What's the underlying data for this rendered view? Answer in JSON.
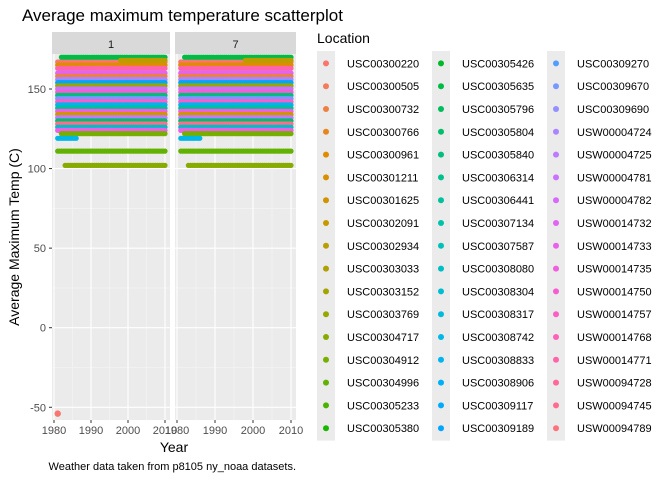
{
  "chart_data": {
    "type": "scatter",
    "title": "Average maximum temperature scatterplot",
    "caption": "Weather data taken from p8105 ny_noaa datasets.",
    "xlabel": "Year",
    "ylabel": "Average Maximum Temp (C)",
    "xlim": [
      1980,
      2010
    ],
    "ylim": [
      -58,
      172
    ],
    "x_ticks": [
      "1980",
      "1990",
      "2000",
      "2010"
    ],
    "y_ticks": [
      "-50",
      "0",
      "50",
      "100",
      "150"
    ],
    "x_tick_values": [
      1980,
      1990,
      2000,
      2010
    ],
    "y_tick_values": [
      -50,
      0,
      50,
      100,
      150
    ],
    "facets": [
      "1",
      "7"
    ],
    "legend_title": "Location",
    "legend_position": "right",
    "grid": true,
    "series": [
      {
        "name": "USC00300220",
        "color": "#F8766D",
        "facet_values": [
          [
            {
              "x": 1981,
              "y": -54
            }
          ],
          []
        ]
      },
      {
        "name": "USC00300505",
        "color": "#F37B59",
        "facet_values": [
          [],
          []
        ]
      },
      {
        "name": "USC00300732",
        "color": "#ED8141",
        "facet_values": [
          [],
          []
        ]
      },
      {
        "name": "USC00300766",
        "color": "#E7861B",
        "facet_values": [
          [],
          []
        ]
      },
      {
        "name": "USC00300961",
        "color": "#DF8C00",
        "facet_values": [
          [],
          []
        ]
      },
      {
        "name": "USC00301211",
        "color": "#D89000",
        "facet_values": [
          [],
          []
        ]
      },
      {
        "name": "USC00301625",
        "color": "#CF9400",
        "facet_values": [
          [],
          []
        ]
      },
      {
        "name": "USC00302091",
        "color": "#C59900",
        "facet_values": [
          [],
          []
        ]
      },
      {
        "name": "USC00302934",
        "color": "#BB9D00",
        "facet_values": [
          [],
          []
        ]
      },
      {
        "name": "USC00303033",
        "color": "#B0A100",
        "facet_values": [
          [],
          []
        ]
      },
      {
        "name": "USC00303152",
        "color": "#A4A400",
        "facet_values": [
          [],
          []
        ]
      },
      {
        "name": "USC00303769",
        "color": "#96A800",
        "facet_values": [
          [],
          []
        ]
      },
      {
        "name": "USC00304717",
        "color": "#88AB00",
        "facet_values": [
          [],
          []
        ]
      },
      {
        "name": "USC00304912",
        "color": "#77AE00",
        "facet_values": [
          [],
          []
        ]
      },
      {
        "name": "USC00304996",
        "color": "#62B200",
        "facet_values": [
          [],
          []
        ]
      },
      {
        "name": "USC00305233",
        "color": "#48B400",
        "facet_values": [
          [],
          []
        ]
      },
      {
        "name": "USC00305380",
        "color": "#1AB700",
        "facet_values": [
          [],
          []
        ]
      },
      {
        "name": "USC00305426",
        "color": "#00B92A",
        "facet_values": [
          [],
          []
        ]
      },
      {
        "name": "USC00305635",
        "color": "#00BB45",
        "facet_values": [
          [],
          []
        ]
      },
      {
        "name": "USC00305796",
        "color": "#00BC5A",
        "facet_values": [
          [],
          []
        ]
      },
      {
        "name": "USC00305804",
        "color": "#00BE6C",
        "facet_values": [
          [],
          []
        ]
      },
      {
        "name": "USC00305840",
        "color": "#00BF7D",
        "facet_values": [
          [],
          []
        ]
      },
      {
        "name": "USC00306314",
        "color": "#00C08D",
        "facet_values": [
          [],
          []
        ]
      },
      {
        "name": "USC00306441",
        "color": "#00C19C",
        "facet_values": [
          [],
          []
        ]
      },
      {
        "name": "USC00307134",
        "color": "#00C1AA",
        "facet_values": [
          [],
          []
        ]
      },
      {
        "name": "USC00307587",
        "color": "#00C0B8",
        "facet_values": [
          [],
          []
        ]
      },
      {
        "name": "USC00308080",
        "color": "#00BFC4",
        "facet_values": [
          [],
          []
        ]
      },
      {
        "name": "USC00308304",
        "color": "#00BDD0",
        "facet_values": [
          [],
          []
        ]
      },
      {
        "name": "USC00308317",
        "color": "#00BBDB",
        "facet_values": [
          [],
          []
        ]
      },
      {
        "name": "USC00308742",
        "color": "#00B8E5",
        "facet_values": [
          [],
          []
        ]
      },
      {
        "name": "USC00308833",
        "color": "#00B4EF",
        "facet_values": [
          [],
          []
        ]
      },
      {
        "name": "USC00308906",
        "color": "#00B0F6",
        "facet_values": [
          [],
          []
        ]
      },
      {
        "name": "USC00309117",
        "color": "#00ABFD",
        "facet_values": [
          [],
          []
        ]
      },
      {
        "name": "USC00309189",
        "color": "#00A5FF",
        "facet_values": [
          [],
          []
        ]
      },
      {
        "name": "USC00309270",
        "color": "#529EFF",
        "facet_values": [
          [],
          []
        ]
      },
      {
        "name": "USC00309670",
        "color": "#7997FF",
        "facet_values": [
          [],
          []
        ]
      },
      {
        "name": "USC00309690",
        "color": "#948FFF",
        "facet_values": [
          [],
          []
        ]
      },
      {
        "name": "USW00004724",
        "color": "#A985FF",
        "facet_values": [
          [],
          []
        ]
      },
      {
        "name": "USW00004725",
        "color": "#BB7CFF",
        "facet_values": [
          [],
          []
        ]
      },
      {
        "name": "USW00004781",
        "color": "#CA72FF",
        "facet_values": [
          [],
          []
        ]
      },
      {
        "name": "USW00004782",
        "color": "#D76AFA",
        "facet_values": [
          [],
          []
        ]
      },
      {
        "name": "USW00014732",
        "color": "#E164F2",
        "facet_values": [
          [],
          []
        ]
      },
      {
        "name": "USW00014733",
        "color": "#EA60E9",
        "facet_values": [
          [],
          []
        ]
      },
      {
        "name": "USW00014735",
        "color": "#F15EDF",
        "facet_values": [
          [],
          []
        ]
      },
      {
        "name": "USW00014750",
        "color": "#F75DD3",
        "facet_values": [
          [],
          []
        ]
      },
      {
        "name": "USW00014757",
        "color": "#FB5EC7",
        "facet_values": [
          [],
          []
        ]
      },
      {
        "name": "USW00014768",
        "color": "#FE61B9",
        "facet_values": [
          [],
          []
        ]
      },
      {
        "name": "USW00014771",
        "color": "#FF64AB",
        "facet_values": [
          [],
          []
        ]
      },
      {
        "name": "USW00094728",
        "color": "#FF689C",
        "facet_values": [
          [],
          []
        ]
      },
      {
        "name": "USW00094745",
        "color": "#FE6D8D",
        "facet_values": [
          [],
          []
        ]
      },
      {
        "name": "USW00094789",
        "color": "#FB727C",
        "facet_values": [
          [],
          []
        ]
      }
    ],
    "bands": [
      {
        "series": 0,
        "y": 167,
        "x0": 1981,
        "x1": 2010
      },
      {
        "series": 4,
        "y": 165,
        "x0": 1981,
        "x1": 2010
      },
      {
        "series": 18,
        "y": 170,
        "x0": 1982,
        "x1": 2010
      },
      {
        "series": 8,
        "y": 168,
        "x0": 1998,
        "x1": 2010
      },
      {
        "series": 47,
        "y": 163,
        "x0": 1981,
        "x1": 2010
      },
      {
        "series": 41,
        "y": 160,
        "x0": 1981,
        "x1": 2010
      },
      {
        "series": 2,
        "y": 158,
        "x0": 1981,
        "x1": 2010
      },
      {
        "series": 37,
        "y": 156,
        "x0": 1981,
        "x1": 2010
      },
      {
        "series": 33,
        "y": 154,
        "x0": 1981,
        "x1": 2010
      },
      {
        "series": 11,
        "y": 152,
        "x0": 1981,
        "x1": 2010
      },
      {
        "series": 39,
        "y": 150,
        "x0": 1981,
        "x1": 2010
      },
      {
        "series": 44,
        "y": 148,
        "x0": 1981,
        "x1": 2010
      },
      {
        "series": 21,
        "y": 146,
        "x0": 1981,
        "x1": 2010
      },
      {
        "series": 35,
        "y": 144,
        "x0": 1981,
        "x1": 2010
      },
      {
        "series": 45,
        "y": 142,
        "x0": 1981,
        "x1": 2010
      },
      {
        "series": 30,
        "y": 140,
        "x0": 1981,
        "x1": 2010
      },
      {
        "series": 23,
        "y": 138,
        "x0": 1981,
        "x1": 2010
      },
      {
        "series": 43,
        "y": 136,
        "x0": 1981,
        "x1": 2010
      },
      {
        "series": 6,
        "y": 134,
        "x0": 1981,
        "x1": 2010
      },
      {
        "series": 38,
        "y": 132,
        "x0": 1981,
        "x1": 2010
      },
      {
        "series": 20,
        "y": 130,
        "x0": 1981,
        "x1": 2010
      },
      {
        "series": 49,
        "y": 128,
        "x0": 1981,
        "x1": 2010
      },
      {
        "series": 26,
        "y": 126,
        "x0": 1981,
        "x1": 2010
      },
      {
        "series": 42,
        "y": 124,
        "x0": 1981,
        "x1": 2010
      },
      {
        "series": 13,
        "y": 122,
        "x0": 1982,
        "x1": 2010
      },
      {
        "series": 29,
        "y": 119,
        "x0": 1981,
        "x1": 1986
      },
      {
        "series": 14,
        "y": 111,
        "x0": 1981,
        "x1": 2010
      },
      {
        "series": 12,
        "y": 102,
        "x0": 1983,
        "x1": 2010
      }
    ]
  }
}
